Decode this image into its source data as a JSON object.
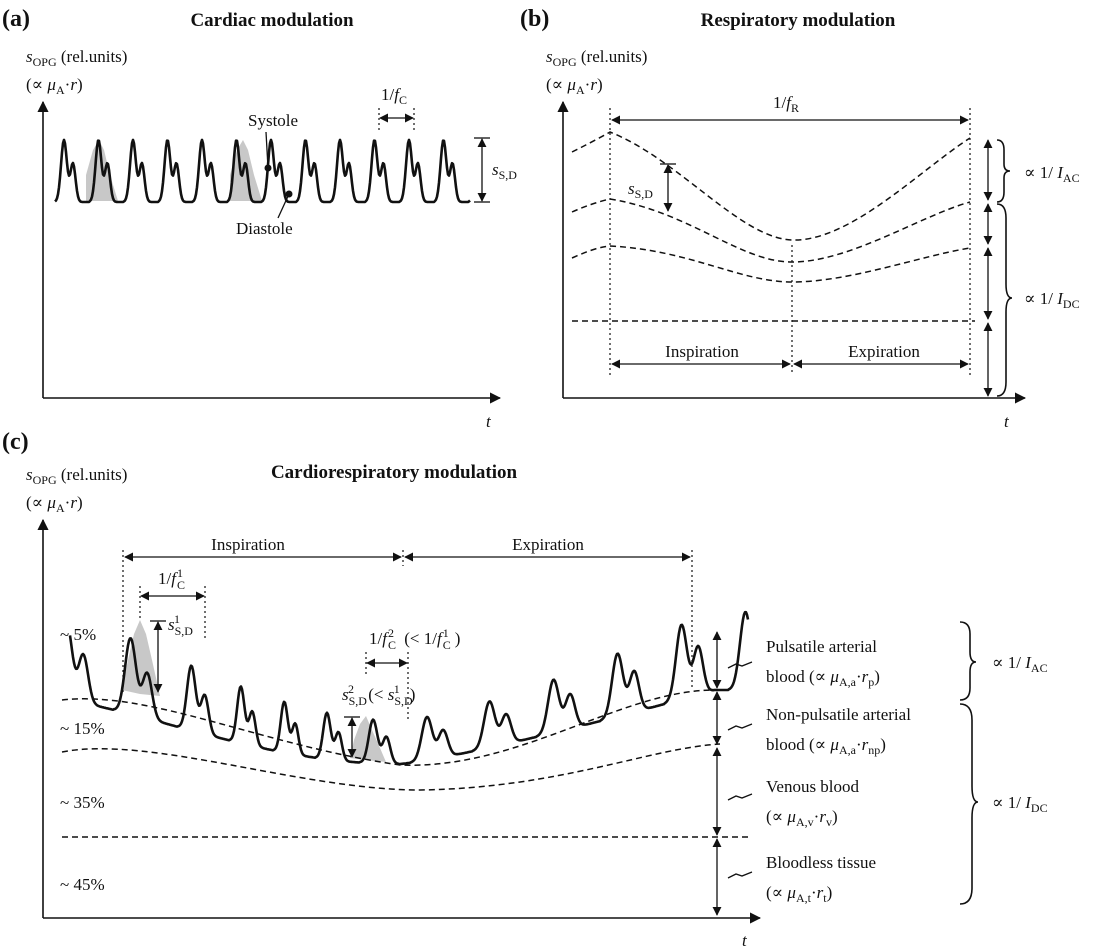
{
  "panel_a": {
    "label": "(a)",
    "title": "Cardiac modulation",
    "ylabel_1": "s_OPG (rel.units)",
    "ylabel_2": "(∝ μ_A·r)",
    "xlabel": "t",
    "period_label": "1/f_C",
    "systole": "Systole",
    "diastole": "Diastole",
    "amplitude_label": "s_S,D"
  },
  "panel_b": {
    "label": "(b)",
    "title": "Respiratory modulation",
    "ylabel_1": "s_OPG (rel.units)",
    "ylabel_2": "(∝ μ_A·r)",
    "xlabel": "t",
    "period_label": "1/f_R",
    "amplitude_label": "s_S,D",
    "inspiration": "Inspiration",
    "expiration": "Expiration",
    "ac_label": "∝ 1/ I_AC",
    "dc_label": "∝ 1/ I_DC"
  },
  "panel_c": {
    "label": "(c)",
    "title": "Cardiorespiratory modulation",
    "ylabel_1": "s_OPG (rel.units)",
    "ylabel_2": "(∝ μ_A·r)",
    "xlabel": "t",
    "inspiration": "Inspiration",
    "expiration": "Expiration",
    "period1_label": "1/f_C^1",
    "amp1_label": "s_S,D^1",
    "period2_label": "1/f_C^2 (< 1/f_C^1)",
    "amp2_label": "s_S,D^2 (< s_S,D^1)",
    "percentages": [
      "~ 5%",
      "~ 15%",
      "~ 35%",
      "~ 45%"
    ],
    "layers": [
      {
        "line1": "Pulsatile arterial",
        "line2": "blood (∝ μ_A,a·r_p)"
      },
      {
        "line1": "Non-pulsatile arterial",
        "line2": "blood (∝ μ_A,a·r_np)"
      },
      {
        "line1": "Venous blood",
        "line2": "(∝ μ_A,v·r_v)"
      },
      {
        "line1": "Bloodless tissue",
        "line2": "(∝ μ_A,t·r_t)"
      }
    ],
    "ac_label": "∝ 1/ I_AC",
    "dc_label": "∝ 1/ I_DC"
  }
}
